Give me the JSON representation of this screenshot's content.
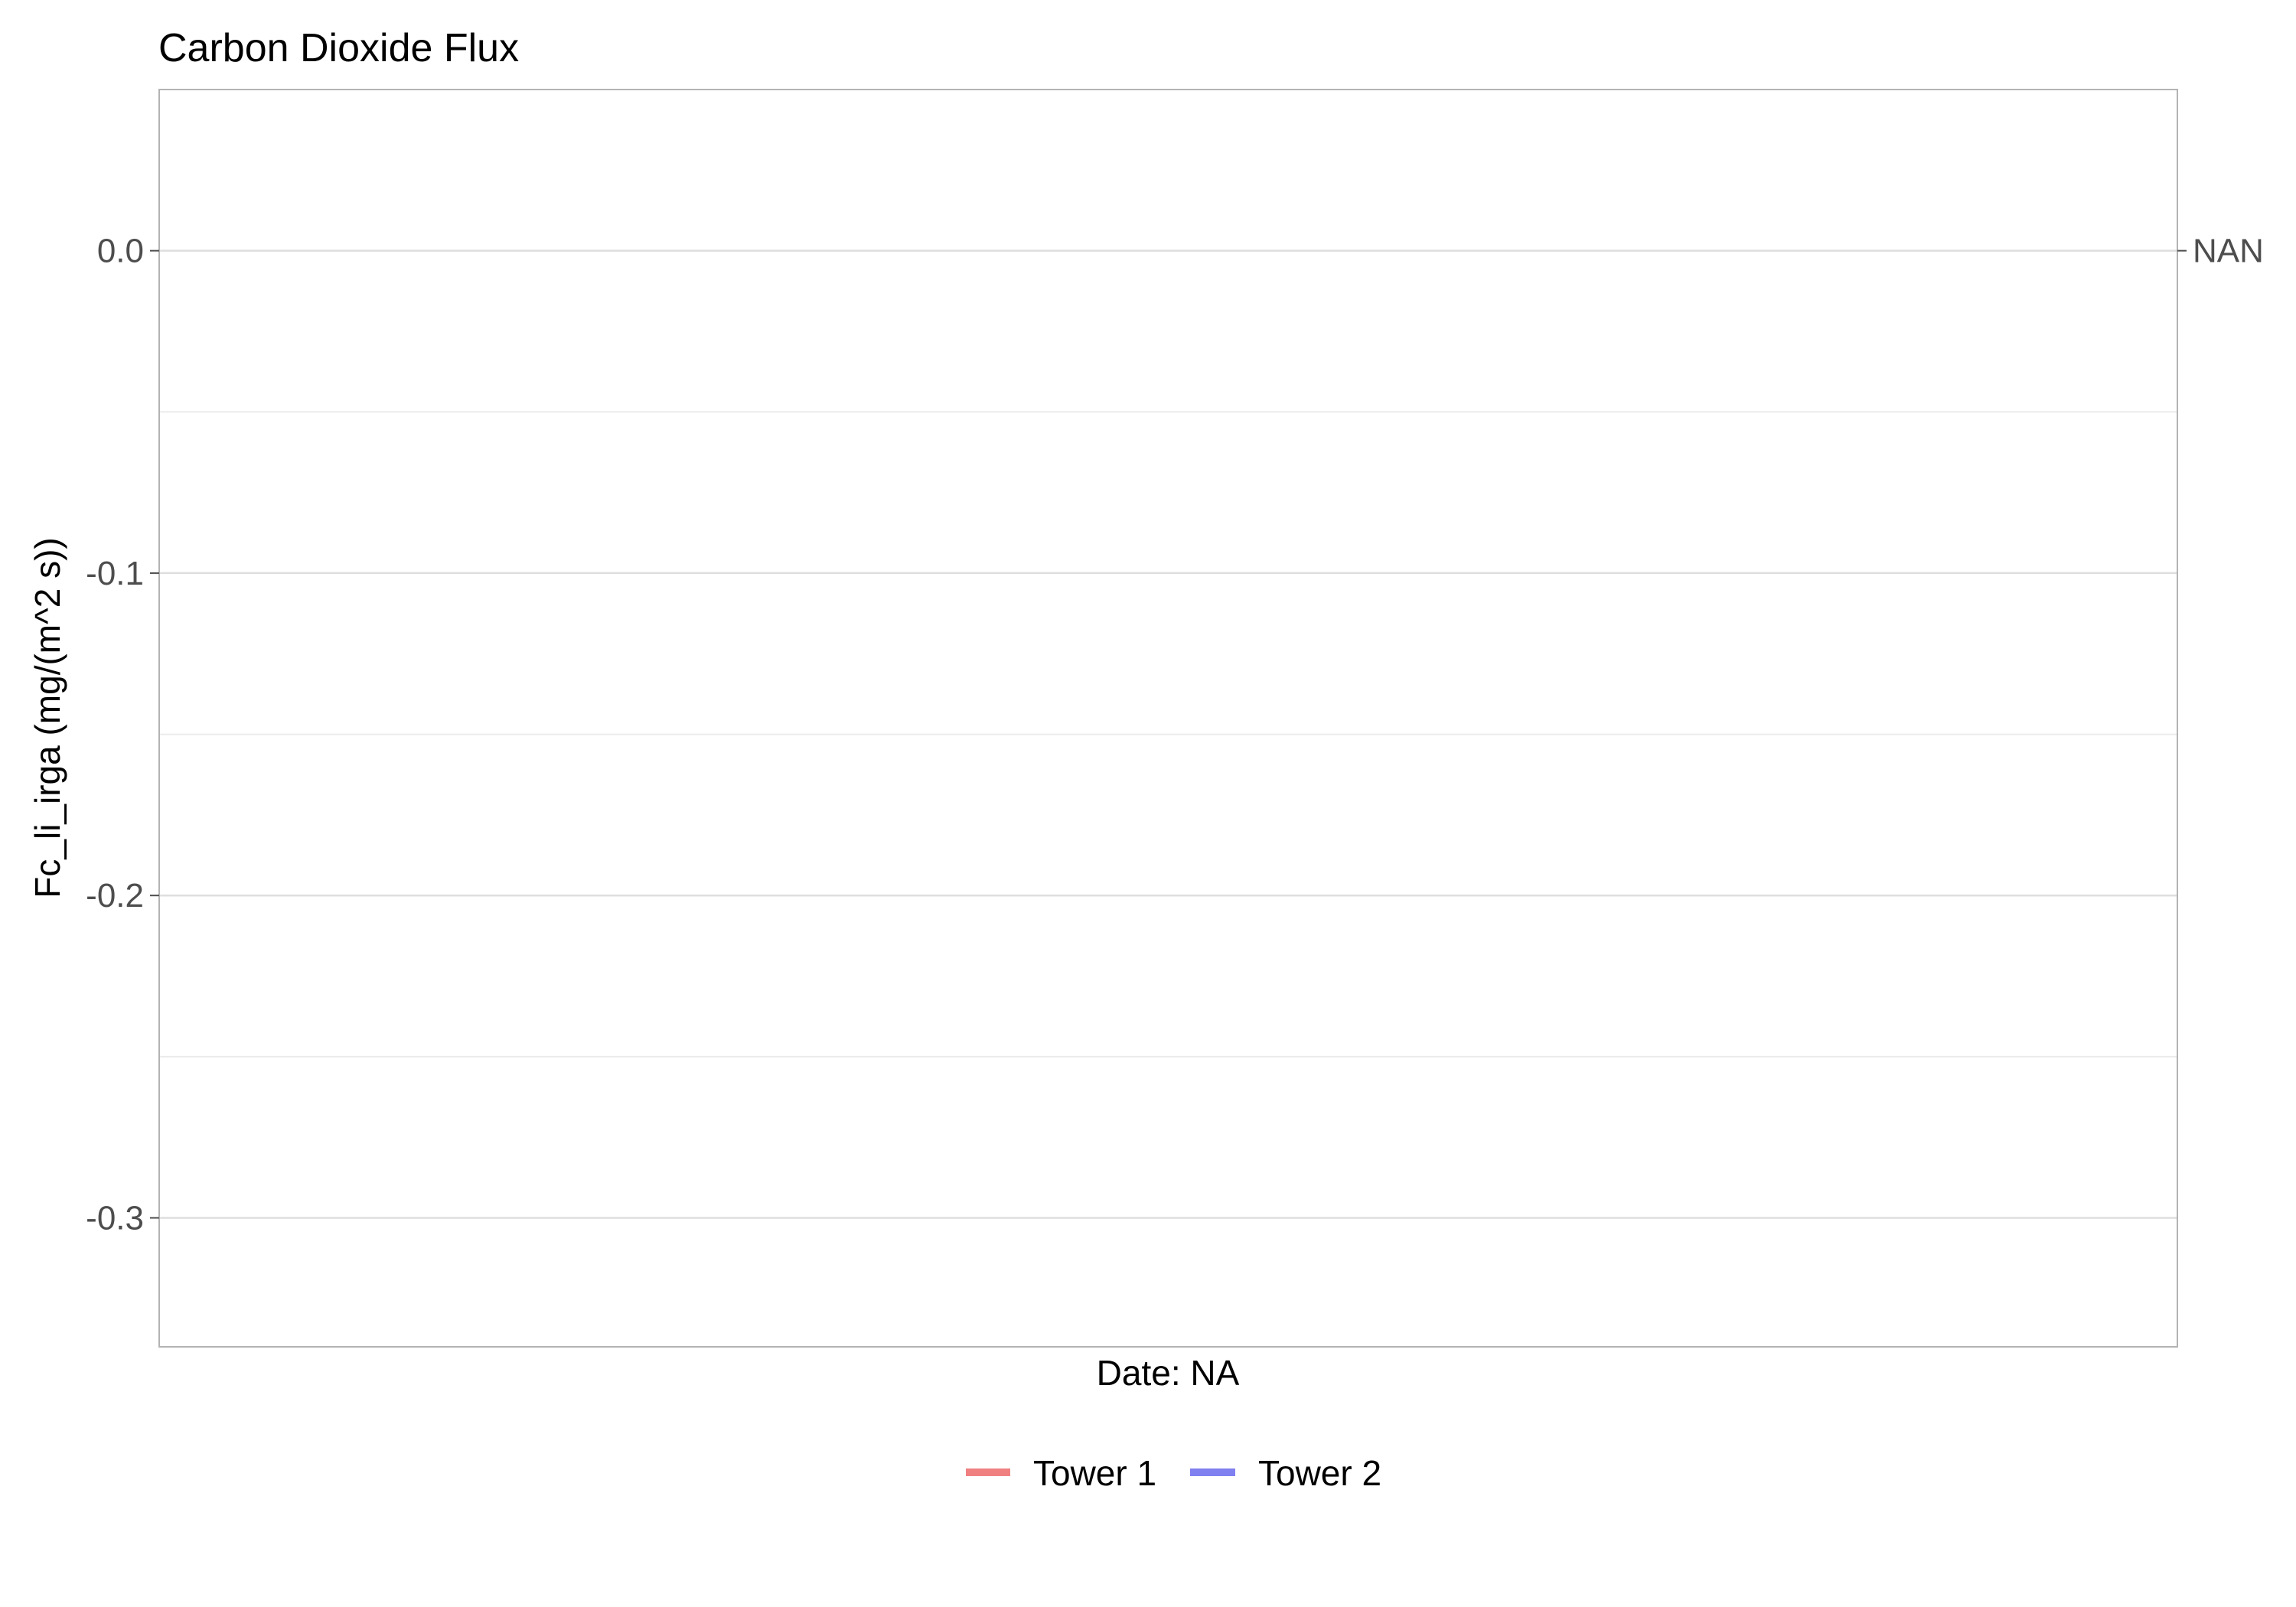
{
  "chart_data": {
    "type": "line",
    "title": "Carbon Dioxide Flux",
    "xlabel": "Date: NA",
    "ylabel": "Fc_li_irga (mg/(m^2 s))",
    "ylim": [
      -0.34,
      0.05
    ],
    "y_ticks": [
      0.0,
      -0.1,
      -0.2,
      -0.3
    ],
    "y_tick_labels": [
      "0.0",
      "-0.1",
      "-0.2",
      "-0.3"
    ],
    "y_minor_ticks": [
      0.05,
      -0.05,
      -0.15,
      -0.25
    ],
    "secondary_y_label": "NAN",
    "secondary_y_value": 0.0,
    "grid": true,
    "legend_position": "bottom",
    "series": [
      {
        "name": "Tower 1",
        "color": "#f08080",
        "x": [],
        "values": []
      },
      {
        "name": "Tower 2",
        "color": "#8080f0",
        "x": [],
        "values": []
      }
    ]
  }
}
